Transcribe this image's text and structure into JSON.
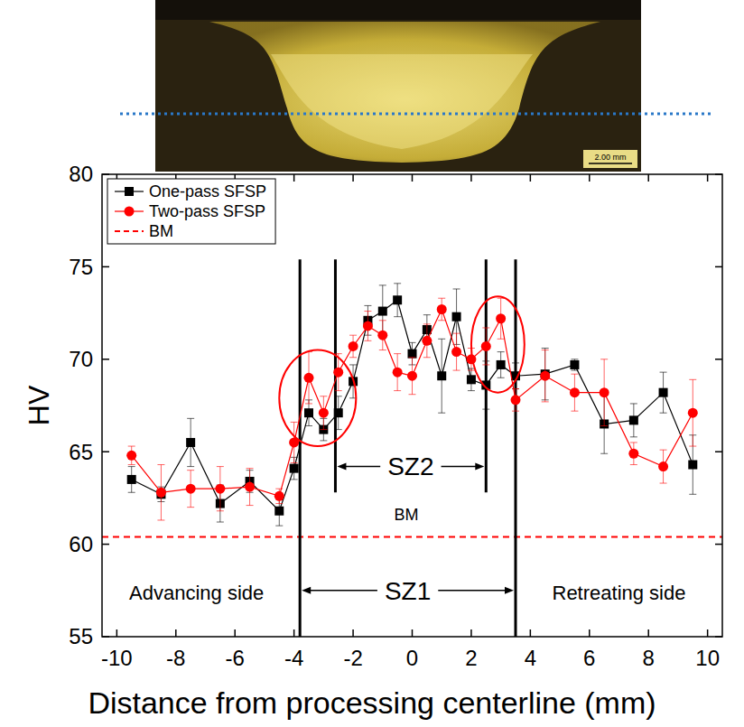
{
  "image": {
    "scale_bar": "2.00 mm"
  },
  "chart_data": {
    "type": "line",
    "x_label": "Distance from processing centerline (mm)",
    "y_label": "HV",
    "x": [
      -9.5,
      -8.5,
      -7.5,
      -6.5,
      -5.5,
      -4.5,
      -4,
      -3.5,
      -3,
      -2.5,
      -2,
      -1.5,
      -1,
      -0.5,
      0,
      0.5,
      1,
      1.5,
      2,
      2.5,
      3,
      3.5,
      4.5,
      5.5,
      6.5,
      7.5,
      8.5,
      9.5
    ],
    "xlim": [
      -10.5,
      10.5
    ],
    "xticks": [
      -10,
      -8,
      -6,
      -4,
      -2,
      0,
      2,
      4,
      6,
      8,
      10
    ],
    "ylim": [
      55,
      80
    ],
    "yticks": [
      55,
      60,
      65,
      70,
      75,
      80
    ],
    "legend": "top-left",
    "series": [
      {
        "name": "One-pass SFSP",
        "color": "#000000",
        "marker": "square",
        "line_style": "solid",
        "values": [
          63.5,
          62.7,
          65.5,
          62.2,
          63.4,
          61.8,
          64.1,
          67.1,
          66.2,
          67.1,
          68.8,
          72.1,
          72.6,
          73.2,
          70.3,
          71.6,
          69.1,
          72.3,
          68.9,
          68.6,
          69.7,
          69.1,
          69.2,
          69.7,
          66.5,
          66.7,
          68.2,
          64.3
        ],
        "errors": [
          0.7,
          0.4,
          1.3,
          1.0,
          0.6,
          0.8,
          0.6,
          0.7,
          0.6,
          0.9,
          0.9,
          0.8,
          1.4,
          0.9,
          0.6,
          0.8,
          2.0,
          1.5,
          0.6,
          1.3,
          0.7,
          0.7,
          1.4,
          0.3,
          1.6,
          0.9,
          1.1,
          1.6
        ]
      },
      {
        "name": "Two-pass SFSP",
        "color": "#ff0000",
        "marker": "circle",
        "line_style": "solid",
        "values": [
          64.8,
          62.8,
          63.0,
          63.0,
          63.1,
          62.6,
          65.5,
          69.0,
          67.1,
          69.3,
          70.7,
          71.8,
          71.3,
          69.3,
          69.1,
          71.0,
          72.7,
          70.4,
          70.0,
          70.7,
          72.2,
          67.8,
          69.1,
          68.2,
          68.2,
          64.9,
          64.2,
          67.1
        ],
        "errors": [
          0.5,
          1.5,
          1.0,
          1.2,
          1.0,
          0.4,
          1.1,
          1.4,
          0.9,
          1.0,
          0.6,
          0.8,
          0.8,
          1.0,
          1.0,
          0.9,
          0.6,
          1.0,
          0.6,
          1.0,
          1.1,
          0.6,
          1.4,
          1.0,
          1.8,
          0.6,
          0.9,
          1.8
        ]
      }
    ],
    "reference_lines": [
      {
        "name": "BM",
        "value": 60.4,
        "color": "#ff0000",
        "line_style": "dashed",
        "label_x": -0.2,
        "label_y": 61.3
      }
    ],
    "zones": [
      {
        "label": "SZ1",
        "from": -3.8,
        "to": 3.5,
        "top": 75.4,
        "bottom": 55,
        "label_y": 57.5
      },
      {
        "label": "SZ2",
        "from": -2.6,
        "to": 2.5,
        "top": 75.4,
        "bottom": 62.8,
        "label_y": 64.2
      }
    ],
    "highlights": [
      {
        "cx": -3.2,
        "cy": 67.9,
        "rx": 1.3,
        "ry": 2.6,
        "color": "#ff0000"
      },
      {
        "cx": 2.9,
        "cy": 70.8,
        "rx": 0.9,
        "ry": 2.6,
        "color": "#ff0000"
      }
    ],
    "annotations": [
      {
        "text": "Advancing side",
        "x": -7.3,
        "y": 57.4
      },
      {
        "text": "Retreating side",
        "x": 7.0,
        "y": 57.4
      }
    ]
  }
}
